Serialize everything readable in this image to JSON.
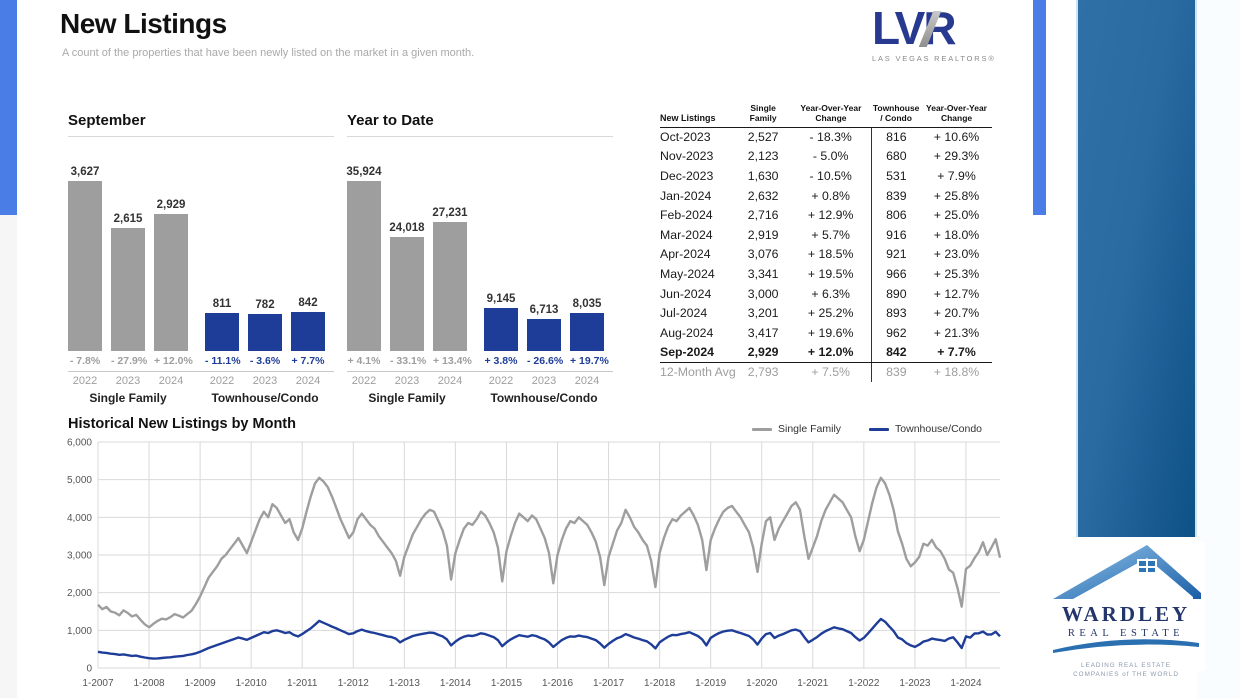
{
  "page": {
    "title": "New Listings",
    "subtitle": "A count of the properties that have been newly listed on the market in a given month."
  },
  "lvr_logo": {
    "text": "LVR",
    "tagline": "LAS VEGAS REALTORS®"
  },
  "colors": {
    "accent_strip": "#4a7de6",
    "single_family_gray": "#9e9e9e",
    "condo_blue": "#1e3d98",
    "panel_start": "#2f71a6",
    "panel_end": "#0d5187",
    "grid": "#d9d9d9"
  },
  "chart_data": [
    {
      "type": "bar",
      "title": "September",
      "max_value": 3627,
      "groups": [
        {
          "label": "Single Family",
          "color": "#9e9e9e",
          "years": [
            "2022",
            "2023",
            "2024"
          ],
          "values": [
            3627,
            2615,
            2929
          ],
          "value_labels": [
            "3,627",
            "2,615",
            "2,929"
          ],
          "changes": [
            "- 7.8%",
            "- 27.9%",
            "+ 12.0%"
          ]
        },
        {
          "label": "Townhouse/Condo",
          "color": "#1e3d98",
          "years": [
            "2022",
            "2023",
            "2024"
          ],
          "values": [
            811,
            782,
            842
          ],
          "value_labels": [
            "811",
            "782",
            "842"
          ],
          "changes": [
            "- 11.1%",
            "- 3.6%",
            "+ 7.7%"
          ]
        }
      ]
    },
    {
      "type": "bar",
      "title": "Year to Date",
      "max_value": 35924,
      "groups": [
        {
          "label": "Single Family",
          "color": "#9e9e9e",
          "years": [
            "2022",
            "2023",
            "2024"
          ],
          "values": [
            35924,
            24018,
            27231
          ],
          "value_labels": [
            "35,924",
            "24,018",
            "27,231"
          ],
          "changes": [
            "+ 4.1%",
            "- 33.1%",
            "+ 13.4%"
          ]
        },
        {
          "label": "Townhouse/Condo",
          "color": "#1e3d98",
          "years": [
            "2022",
            "2023",
            "2024"
          ],
          "values": [
            9145,
            6713,
            8035
          ],
          "value_labels": [
            "9,145",
            "6,713",
            "8,035"
          ],
          "changes": [
            "+ 3.8%",
            "- 26.6%",
            "+ 19.7%"
          ]
        }
      ]
    },
    {
      "type": "line",
      "title": "Historical New Listings by Month",
      "ylim": [
        0,
        6000
      ],
      "ytick_step": 1000,
      "ytick_labels": [
        "6,000",
        "5,000",
        "4,000",
        "3,000",
        "2,000",
        "1,000",
        "0"
      ],
      "xtick_labels": [
        "1-2007",
        "1-2008",
        "1-2009",
        "1-2010",
        "1-2011",
        "1-2012",
        "1-2013",
        "1-2014",
        "1-2015",
        "1-2016",
        "1-2017",
        "1-2018",
        "1-2019",
        "1-2020",
        "1-2021",
        "1-2022",
        "1-2023",
        "1-2024"
      ],
      "x_start": "1-2007",
      "x_end": "9-2024",
      "grid": true,
      "legend_position": "top-right",
      "series": [
        {
          "name": "Single Family",
          "color": "#9e9e9e",
          "values": [
            1680,
            1560,
            1620,
            1500,
            1470,
            1400,
            1530,
            1460,
            1370,
            1410,
            1280,
            1160,
            1080,
            1170,
            1250,
            1310,
            1290,
            1350,
            1430,
            1390,
            1340,
            1430,
            1520,
            1700,
            1900,
            2150,
            2400,
            2550,
            2700,
            2900,
            3000,
            3150,
            3300,
            3450,
            3250,
            3050,
            3350,
            3650,
            3950,
            4150,
            4000,
            4350,
            4250,
            4050,
            3850,
            3950,
            3600,
            3400,
            3700,
            4150,
            4550,
            4900,
            5050,
            4950,
            4800,
            4550,
            4250,
            3950,
            3700,
            3450,
            3600,
            3950,
            4100,
            3950,
            3800,
            3700,
            3500,
            3350,
            3200,
            3050,
            2850,
            2450,
            2950,
            3250,
            3550,
            3750,
            3950,
            4100,
            4200,
            4150,
            3900,
            3650,
            3250,
            2350,
            3050,
            3400,
            3700,
            3850,
            3800,
            3950,
            4150,
            4050,
            3850,
            3600,
            3200,
            2300,
            3100,
            3500,
            3850,
            4100,
            4000,
            3900,
            4050,
            3950,
            3700,
            3450,
            3050,
            2250,
            3000,
            3400,
            3700,
            3900,
            3850,
            4000,
            3900,
            3800,
            3600,
            3350,
            2950,
            2200,
            2950,
            3300,
            3650,
            3850,
            4200,
            4000,
            3750,
            3600,
            3400,
            3250,
            2850,
            2150,
            3050,
            3450,
            3750,
            3950,
            3900,
            4050,
            4150,
            4250,
            4050,
            3800,
            3400,
            2600,
            3400,
            3700,
            3950,
            4150,
            4250,
            4300,
            4150,
            4000,
            3800,
            3600,
            3200,
            2550,
            3300,
            3900,
            4000,
            3400,
            3700,
            3900,
            4100,
            4300,
            4400,
            4200,
            3500,
            2900,
            3200,
            3500,
            3900,
            4200,
            4400,
            4600,
            4500,
            4400,
            4200,
            4000,
            3500,
            3100,
            3400,
            3900,
            4400,
            4800,
            5050,
            4900,
            4600,
            4200,
            3627,
            3300,
            2900,
            2700,
            2800,
            2950,
            3300,
            3250,
            3400,
            3200,
            3100,
            2900,
            2615,
            2527,
            2123,
            1630,
            2632,
            2716,
            2919,
            3076,
            3341,
            3000,
            3201,
            3417,
            2929
          ]
        },
        {
          "name": "Townhouse/Condo",
          "color": "#1e3d98",
          "values": [
            430,
            410,
            400,
            380,
            370,
            350,
            360,
            340,
            320,
            330,
            300,
            280,
            260,
            250,
            255,
            265,
            275,
            285,
            300,
            310,
            320,
            345,
            365,
            390,
            430,
            480,
            530,
            570,
            610,
            650,
            690,
            730,
            770,
            810,
            780,
            750,
            800,
            850,
            900,
            950,
            930,
            980,
            1000,
            970,
            930,
            950,
            880,
            840,
            900,
            980,
            1050,
            1150,
            1250,
            1200,
            1150,
            1100,
            1050,
            1000,
            950,
            900,
            920,
            980,
            1020,
            980,
            950,
            930,
            900,
            870,
            840,
            820,
            780,
            680,
            750,
            800,
            850,
            880,
            900,
            920,
            940,
            930,
            880,
            840,
            760,
            600,
            700,
            780,
            830,
            860,
            850,
            880,
            920,
            900,
            860,
            820,
            740,
            580,
            680,
            760,
            820,
            870,
            850,
            830,
            870,
            850,
            800,
            760,
            680,
            560,
            650,
            740,
            800,
            840,
            830,
            860,
            840,
            820,
            780,
            740,
            650,
            540,
            640,
            720,
            790,
            830,
            900,
            860,
            810,
            780,
            740,
            710,
            630,
            520,
            680,
            760,
            830,
            880,
            870,
            900,
            920,
            950,
            900,
            850,
            760,
            600,
            800,
            870,
            930,
            970,
            990,
            1000,
            960,
            930,
            890,
            850,
            760,
            620,
            780,
            900,
            930,
            800,
            860,
            900,
            950,
            1000,
            1020,
            980,
            820,
            680,
            750,
            820,
            910,
            980,
            1030,
            1080,
            1050,
            1030,
            980,
            930,
            820,
            730,
            800,
            920,
            1050,
            1180,
            1300,
            1230,
            1100,
            980,
            811,
            760,
            660,
            600,
            560,
            620,
            700,
            730,
            780,
            760,
            740,
            720,
            782,
            816,
            680,
            531,
            839,
            806,
            916,
            921,
            966,
            890,
            893,
            962,
            842
          ]
        }
      ]
    }
  ],
  "table": {
    "header": {
      "col1": "New Listings",
      "col2": "Single\nFamily",
      "col3": "Year-Over-Year\nChange",
      "col4": "Townhouse\n/ Condo",
      "col5": "Year-Over-Year\nChange"
    },
    "rows": [
      [
        "Oct-2023",
        "2,527",
        "- 18.3%",
        "816",
        "+ 10.6%"
      ],
      [
        "Nov-2023",
        "2,123",
        "- 5.0%",
        "680",
        "+ 29.3%"
      ],
      [
        "Dec-2023",
        "1,630",
        "- 10.5%",
        "531",
        "+ 7.9%"
      ],
      [
        "Jan-2024",
        "2,632",
        "+ 0.8%",
        "839",
        "+ 25.8%"
      ],
      [
        "Feb-2024",
        "2,716",
        "+ 12.9%",
        "806",
        "+ 25.0%"
      ],
      [
        "Mar-2024",
        "2,919",
        "+ 5.7%",
        "916",
        "+ 18.0%"
      ],
      [
        "Apr-2024",
        "3,076",
        "+ 18.5%",
        "921",
        "+ 23.0%"
      ],
      [
        "May-2024",
        "3,341",
        "+ 19.5%",
        "966",
        "+ 25.3%"
      ],
      [
        "Jun-2024",
        "3,000",
        "+ 6.3%",
        "890",
        "+ 12.7%"
      ],
      [
        "Jul-2024",
        "3,201",
        "+ 25.2%",
        "893",
        "+ 20.7%"
      ],
      [
        "Aug-2024",
        "3,417",
        "+ 19.6%",
        "962",
        "+ 21.3%"
      ],
      [
        "Sep-2024",
        "2,929",
        "+ 12.0%",
        "842",
        "+ 7.7%"
      ]
    ],
    "bold_row": "Sep-2024",
    "avg_row": [
      "12-Month Avg",
      "2,793",
      "+ 7.5%",
      "839",
      "+ 18.8%"
    ]
  },
  "wardley_logo": {
    "name": "WARDLEY",
    "sub": "REAL ESTATE",
    "caption": "LEADING REAL ESTATE\nCOMPANIES of THE WORLD"
  }
}
